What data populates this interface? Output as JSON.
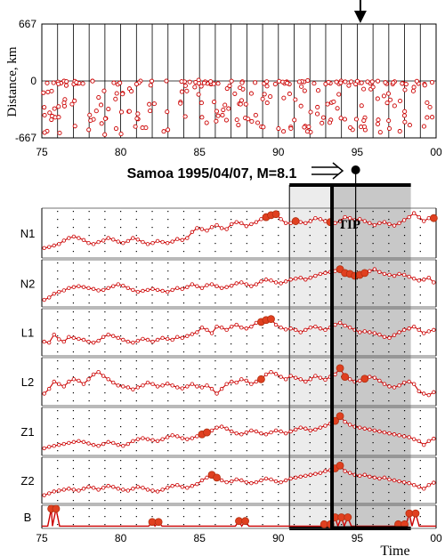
{
  "chart_data": [
    {
      "type": "scatter",
      "ylabel": "Distance, km",
      "x_ticks": [
        "75",
        "80",
        "85",
        "90",
        "95",
        "00"
      ],
      "y_ticks": [
        "667",
        "0",
        "-667"
      ],
      "xlim": [
        75,
        100
      ],
      "ylim": [
        -667,
        667
      ],
      "marker": "open circle",
      "color": "#cc0000",
      "arrow_at": 95.2
    },
    {
      "type": "line",
      "title": "Samoa 1995/04/07, M=8.1",
      "xlabel": "Time",
      "x_ticks": [
        "75",
        "80",
        "85",
        "90",
        "95",
        "00"
      ],
      "xlim": [
        75,
        100
      ],
      "colors": {
        "line": "#cc0000",
        "alarm_point": "#e04020",
        "tip_dark": "#c8c8c8",
        "tip_light": "#ececec"
      },
      "tip": {
        "label": "TIP",
        "light_start": 90.7,
        "dark_start": 93.4,
        "end": 98.4
      },
      "earthquake_time": 94.9,
      "series": [
        {
          "name": "N1",
          "values": [
            0.2,
            0.22,
            0.25,
            0.28,
            0.35,
            0.4,
            0.43,
            0.4,
            0.36,
            0.3,
            0.28,
            0.32,
            0.35,
            0.4,
            0.37,
            0.33,
            0.3,
            0.34,
            0.4,
            0.37,
            0.32,
            0.28,
            0.3,
            0.34,
            0.32,
            0.3,
            0.33,
            0.38,
            0.36,
            0.4,
            0.52,
            0.6,
            0.58,
            0.55,
            0.62,
            0.66,
            0.6,
            0.58,
            0.68,
            0.72,
            0.7,
            0.64,
            0.68,
            0.72,
            0.78,
            0.82,
            0.86,
            0.88,
            0.78,
            0.7,
            0.7,
            0.74,
            0.72,
            0.7,
            0.74,
            0.8,
            0.78,
            0.74,
            0.72,
            0.7,
            0.74,
            0.82,
            0.8,
            0.76,
            0.78,
            0.74,
            0.7,
            0.66,
            0.7,
            0.72,
            0.68,
            0.65,
            0.7,
            0.76,
            0.82,
            0.9,
            0.82,
            0.74,
            0.8,
            0.8
          ],
          "alarms": [
            45,
            46,
            47,
            51,
            58,
            79
          ]
        },
        {
          "name": "N2",
          "values": [
            0.15,
            0.2,
            0.28,
            0.32,
            0.35,
            0.4,
            0.42,
            0.44,
            0.42,
            0.4,
            0.38,
            0.35,
            0.36,
            0.4,
            0.44,
            0.48,
            0.45,
            0.4,
            0.36,
            0.32,
            0.34,
            0.36,
            0.38,
            0.36,
            0.34,
            0.32,
            0.36,
            0.4,
            0.38,
            0.42,
            0.48,
            0.44,
            0.4,
            0.46,
            0.48,
            0.44,
            0.4,
            0.42,
            0.45,
            0.5,
            0.52,
            0.48,
            0.44,
            0.48,
            0.54,
            0.58,
            0.56,
            0.52,
            0.5,
            0.54,
            0.58,
            0.6,
            0.62,
            0.58,
            0.62,
            0.66,
            0.7,
            0.72,
            0.74,
            0.76,
            0.8,
            0.72,
            0.7,
            0.66,
            0.68,
            0.72,
            0.76,
            0.8,
            0.74,
            0.7,
            0.68,
            0.66,
            0.7,
            0.68,
            0.64,
            0.6,
            0.56,
            0.58,
            0.62,
            0.52
          ],
          "alarms": [
            60,
            61,
            62,
            63,
            64,
            65
          ]
        },
        {
          "name": "L1",
          "values": [
            0.3,
            0.28,
            0.45,
            0.35,
            0.3,
            0.4,
            0.38,
            0.36,
            0.34,
            0.3,
            0.28,
            0.32,
            0.4,
            0.45,
            0.42,
            0.38,
            0.34,
            0.3,
            0.28,
            0.32,
            0.36,
            0.34,
            0.3,
            0.34,
            0.38,
            0.36,
            0.34,
            0.4,
            0.38,
            0.42,
            0.46,
            0.5,
            0.6,
            0.55,
            0.48,
            0.62,
            0.6,
            0.55,
            0.62,
            0.66,
            0.6,
            0.58,
            0.62,
            0.7,
            0.72,
            0.76,
            0.78,
            0.66,
            0.6,
            0.56,
            0.58,
            0.55,
            0.5,
            0.55,
            0.6,
            0.62,
            0.58,
            0.55,
            0.6,
            0.66,
            0.7,
            0.64,
            0.6,
            0.55,
            0.5,
            0.52,
            0.5,
            0.48,
            0.45,
            0.4,
            0.38,
            0.44,
            0.5,
            0.55,
            0.58,
            0.62,
            0.55,
            0.48,
            0.52,
            0.55
          ],
          "alarms": [
            44,
            45,
            46
          ]
        },
        {
          "name": "L2",
          "values": [
            0.25,
            0.35,
            0.5,
            0.45,
            0.4,
            0.5,
            0.55,
            0.52,
            0.45,
            0.55,
            0.65,
            0.7,
            0.62,
            0.55,
            0.48,
            0.42,
            0.4,
            0.38,
            0.34,
            0.38,
            0.42,
            0.48,
            0.45,
            0.4,
            0.42,
            0.46,
            0.42,
            0.38,
            0.36,
            0.4,
            0.45,
            0.4,
            0.38,
            0.42,
            0.35,
            0.25,
            0.35,
            0.45,
            0.5,
            0.48,
            0.55,
            0.52,
            0.45,
            0.5,
            0.55,
            0.65,
            0.7,
            0.66,
            0.6,
            0.55,
            0.62,
            0.58,
            0.55,
            0.5,
            0.55,
            0.62,
            0.58,
            0.54,
            0.6,
            0.65,
            0.78,
            0.6,
            0.55,
            0.5,
            0.52,
            0.56,
            0.6,
            0.58,
            0.52,
            0.45,
            0.4,
            0.38,
            0.42,
            0.48,
            0.5,
            0.45,
            0.3,
            0.25,
            0.22,
            0.28
          ],
          "alarms": [
            44,
            60,
            61,
            65
          ]
        },
        {
          "name": "Z1",
          "values": [
            0.15,
            0.18,
            0.2,
            0.22,
            0.24,
            0.26,
            0.28,
            0.3,
            0.28,
            0.25,
            0.22,
            0.2,
            0.24,
            0.28,
            0.26,
            0.22,
            0.2,
            0.24,
            0.3,
            0.34,
            0.36,
            0.34,
            0.32,
            0.3,
            0.34,
            0.38,
            0.42,
            0.4,
            0.36,
            0.34,
            0.36,
            0.4,
            0.44,
            0.48,
            0.52,
            0.58,
            0.6,
            0.56,
            0.5,
            0.46,
            0.44,
            0.48,
            0.52,
            0.5,
            0.46,
            0.44,
            0.48,
            0.52,
            0.5,
            0.46,
            0.5,
            0.54,
            0.58,
            0.56,
            0.52,
            0.54,
            0.58,
            0.62,
            0.66,
            0.72,
            0.82,
            0.7,
            0.64,
            0.6,
            0.58,
            0.56,
            0.54,
            0.52,
            0.5,
            0.48,
            0.46,
            0.44,
            0.42,
            0.4,
            0.38,
            0.34,
            0.3,
            0.22,
            0.3,
            0.35
          ],
          "alarms": [
            32,
            33,
            59,
            60
          ]
        },
        {
          "name": "Z2",
          "values": [
            0.18,
            0.22,
            0.26,
            0.28,
            0.3,
            0.32,
            0.3,
            0.28,
            0.32,
            0.36,
            0.34,
            0.3,
            0.34,
            0.38,
            0.36,
            0.32,
            0.3,
            0.28,
            0.32,
            0.36,
            0.34,
            0.3,
            0.28,
            0.26,
            0.3,
            0.34,
            0.38,
            0.4,
            0.36,
            0.34,
            0.38,
            0.42,
            0.5,
            0.56,
            0.62,
            0.56,
            0.5,
            0.46,
            0.48,
            0.52,
            0.5,
            0.46,
            0.44,
            0.46,
            0.5,
            0.54,
            0.52,
            0.48,
            0.46,
            0.5,
            0.54,
            0.56,
            0.58,
            0.6,
            0.62,
            0.64,
            0.66,
            0.7,
            0.72,
            0.76,
            0.82,
            0.7,
            0.66,
            0.62,
            0.6,
            0.62,
            0.58,
            0.56,
            0.54,
            0.56,
            0.52,
            0.5,
            0.48,
            0.46,
            0.44,
            0.4,
            0.36,
            0.32,
            0.4,
            0.45
          ],
          "alarms": [
            34,
            35,
            59,
            60
          ]
        },
        {
          "name": "B",
          "values": [
            0.1,
            0.1,
            0.1,
            0.1,
            0.1,
            0.1,
            0.1,
            0.85,
            0.85,
            0.1,
            0.1,
            0.1,
            0.1,
            0.1,
            0.1,
            0.1,
            0.1,
            0.1,
            0.1,
            0.1,
            0.1,
            0.1,
            0.1,
            0.1,
            0.1,
            0.1,
            0.1,
            0.1,
            0.1,
            0.1,
            0.1,
            0.1,
            0.1,
            0.1,
            0.1,
            0.1,
            0.1,
            0.1,
            0.1,
            0.1,
            0.1,
            0.1,
            0.1,
            0.1,
            0.1,
            0.1,
            0.1,
            0.1,
            0.1,
            0.1,
            0.1,
            0.1,
            0.1,
            0.1,
            0.1,
            0.1,
            0.1,
            0.1,
            0.1,
            0.1,
            0.1,
            0.1,
            0.1,
            0.1,
            0.1,
            0.1,
            0.1,
            0.1,
            0.1,
            0.1,
            0.1,
            0.1,
            0.1,
            0.1,
            0.1,
            0.1,
            0.1,
            0.1,
            0.1,
            0.1
          ],
          "spikes": [
            [
              75.6,
              0.85
            ],
            [
              75.9,
              0.85
            ],
            [
              82.0,
              0.28
            ],
            [
              82.4,
              0.28
            ],
            [
              87.5,
              0.32
            ],
            [
              87.9,
              0.32
            ],
            [
              92.9,
              0.18
            ],
            [
              93.3,
              0.18
            ],
            [
              93.6,
              0.48
            ],
            [
              94.0,
              0.48
            ],
            [
              94.4,
              0.48
            ],
            [
              97.6,
              0.18
            ],
            [
              98.0,
              0.18
            ],
            [
              98.3,
              0.65
            ],
            [
              98.7,
              0.65
            ]
          ]
        }
      ]
    }
  ]
}
